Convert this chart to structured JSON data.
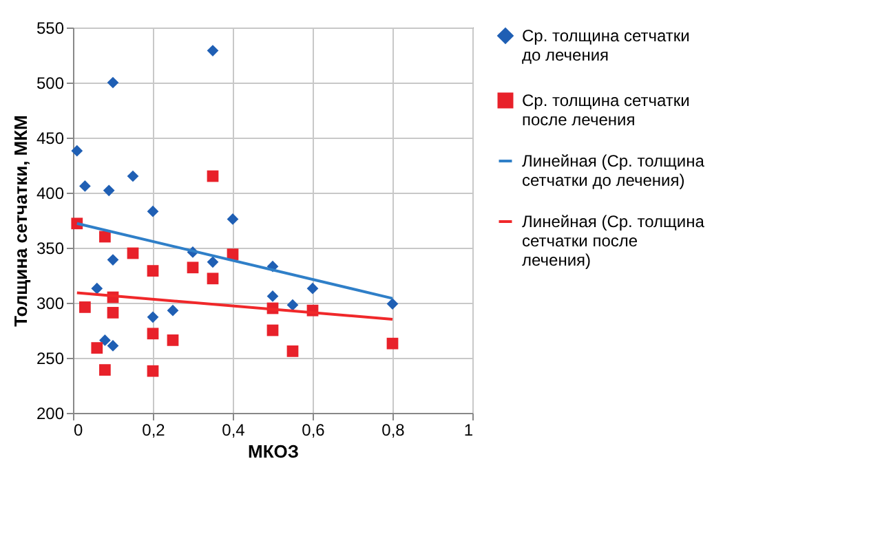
{
  "chart_data": {
    "type": "scatter",
    "xlabel": "МКОЗ",
    "ylabel": "Толщина сетчатки, МКМ",
    "xlim": [
      0,
      1
    ],
    "ylim": [
      200,
      550
    ],
    "xticks": [
      0,
      {
        "value": 0.2,
        "label": "0,2"
      },
      {
        "value": 0.4,
        "label": "0,4"
      },
      {
        "value": 0.6,
        "label": "0,6"
      },
      {
        "value": 0.8,
        "label": "0,8"
      },
      1
    ],
    "yticks": [
      200,
      250,
      300,
      350,
      400,
      450,
      500,
      550
    ],
    "grid": true,
    "legend": "right",
    "series": [
      {
        "name": "Ср. толщина сетчатки до лечения",
        "marker": "diamond",
        "color": "#1f5fb4",
        "x": [
          0.01,
          0.03,
          0.09,
          0.1,
          0.15,
          0.35,
          0.2,
          0.4,
          0.3,
          0.35,
          0.5,
          0.1,
          0.06,
          0.5,
          0.55,
          0.6,
          0.8,
          0.2,
          0.25,
          0.08,
          0.1
        ],
        "values": [
          438,
          406,
          402,
          500,
          415,
          529,
          383,
          376,
          346,
          337,
          333,
          339,
          313,
          306,
          298,
          313,
          299,
          287,
          293,
          266,
          261
        ]
      },
      {
        "name": "Ср. толщина сетчатки после лечения",
        "marker": "square",
        "color": "#e8212a",
        "x": [
          0.01,
          0.08,
          0.15,
          0.2,
          0.3,
          0.35,
          0.35,
          0.4,
          0.1,
          0.1,
          0.03,
          0.5,
          0.6,
          0.2,
          0.25,
          0.06,
          0.08,
          0.2,
          0.5,
          0.55,
          0.8
        ],
        "values": [
          372,
          360,
          345,
          329,
          332,
          322,
          415,
          344,
          305,
          291,
          296,
          295,
          293,
          272,
          266,
          259,
          239,
          238,
          275,
          256,
          263
        ]
      },
      {
        "name": "Линейная (Ср. толщина сетчатки до лечения)",
        "type": "line",
        "color": "#2f7fc8",
        "x": [
          0.01,
          0.8
        ],
        "values": [
          372,
          304
        ]
      },
      {
        "name": "Линейная (Ср. толщина сетчатки после лечения)",
        "type": "line",
        "color": "#f0282a",
        "x": [
          0.01,
          0.8
        ],
        "values": [
          309,
          285
        ]
      }
    ]
  }
}
